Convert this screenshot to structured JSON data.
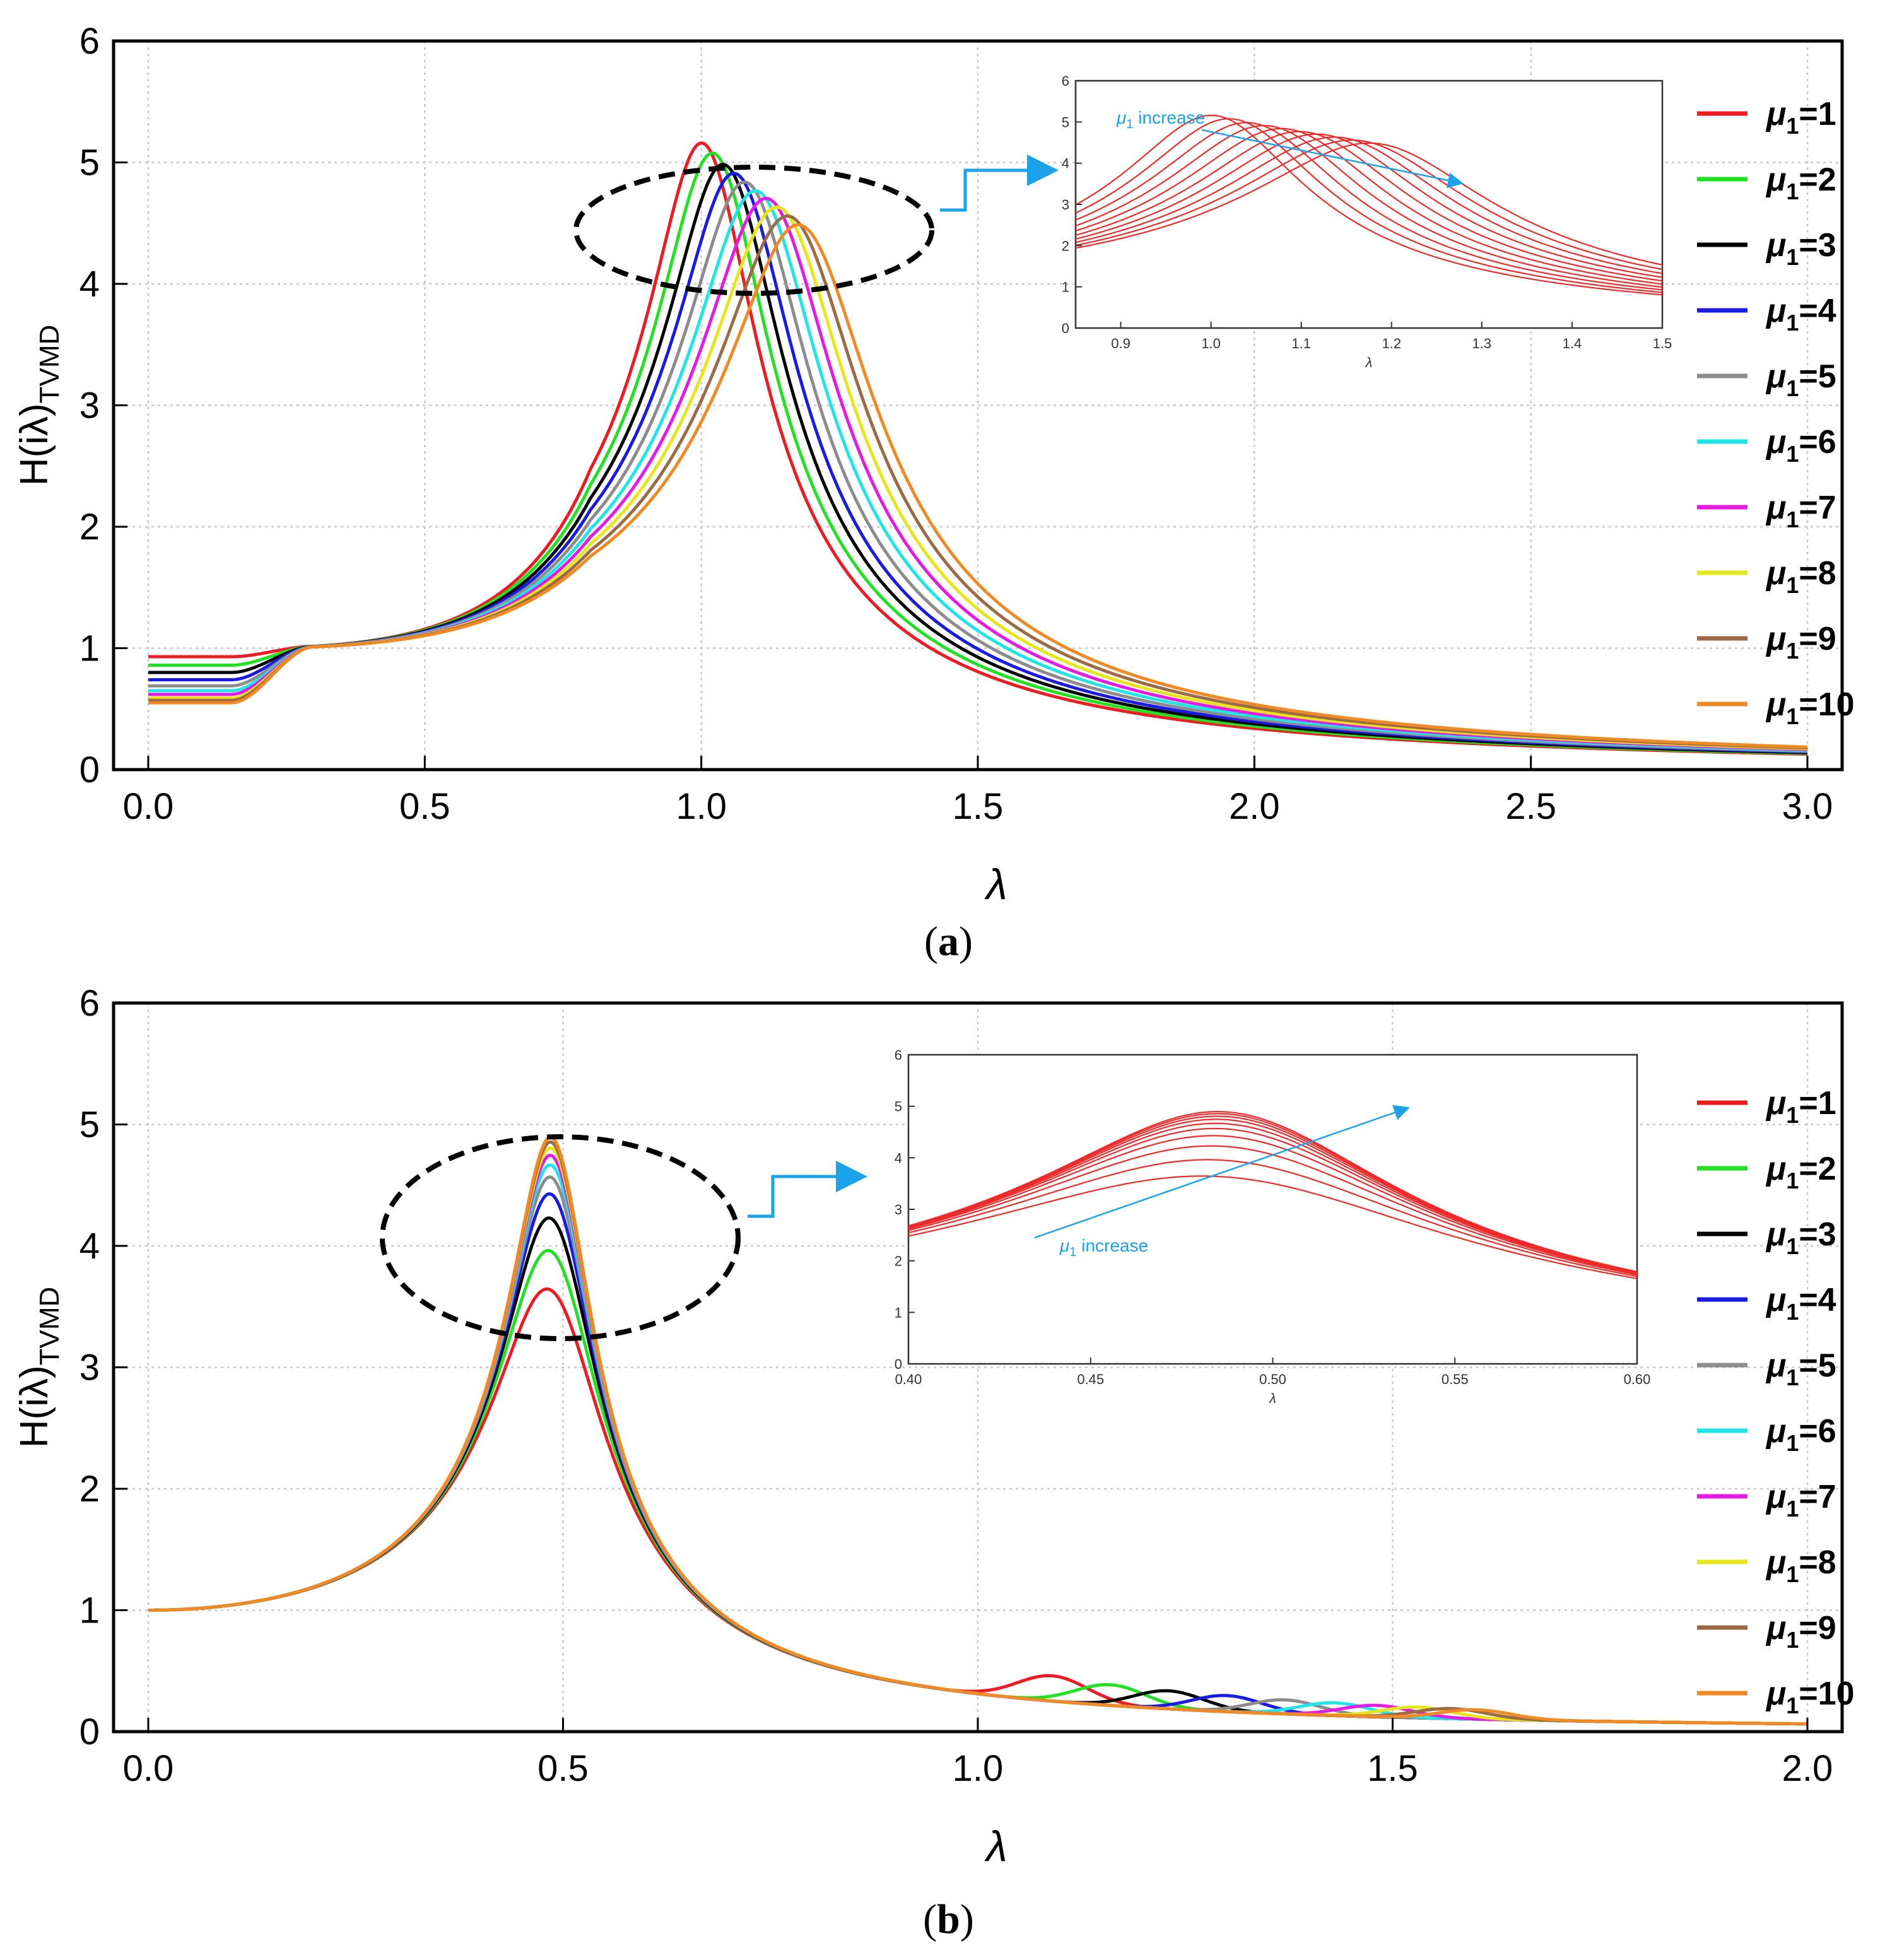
{
  "figure": {
    "legend_labels": [
      "μ1=1",
      "μ1=2",
      "μ1=3",
      "μ1=4",
      "μ1=5",
      "μ1=6",
      "μ1=7",
      "μ1=8",
      "μ1=9",
      "μ1=10"
    ],
    "colors": [
      "#ee1b22",
      "#22e022",
      "#000000",
      "#1a1ae6",
      "#8c8c8c",
      "#1fe6e6",
      "#e61ae6",
      "#e6e61a",
      "#9c6b46",
      "#f08a24"
    ],
    "inset_color": "#ee2a2a",
    "arrow_color": "#1aa3e8"
  },
  "chart_data": [
    {
      "panel_label": "a",
      "type": "line",
      "title": "",
      "xlabel": "λ",
      "ylabel": "H(iλ)",
      "ylabel_sub": "TVMD",
      "xlim": [
        0,
        3
      ],
      "ylim": [
        0,
        6
      ],
      "xticks": [
        "0.0",
        "0.5",
        "1.0",
        "1.5",
        "2.0",
        "2.5",
        "3.0"
      ],
      "yticks": [
        "0",
        "1",
        "2",
        "3",
        "4",
        "5",
        "6"
      ],
      "grid": true,
      "legend_position": "right",
      "series": [
        {
          "name": "μ1=1",
          "peak_x": 1.01,
          "peak_y": 4.93,
          "low_start": 0.93
        },
        {
          "name": "μ1=2",
          "peak_x": 1.03,
          "peak_y": 4.85,
          "low_start": 0.86
        },
        {
          "name": "μ1=3",
          "peak_x": 1.05,
          "peak_y": 4.76,
          "low_start": 0.8
        },
        {
          "name": "μ1=4",
          "peak_x": 1.07,
          "peak_y": 4.69,
          "low_start": 0.74
        },
        {
          "name": "μ1=5",
          "peak_x": 1.09,
          "peak_y": 4.62,
          "low_start": 0.69
        },
        {
          "name": "μ1=6",
          "peak_x": 1.11,
          "peak_y": 4.55,
          "low_start": 0.65
        },
        {
          "name": "μ1=7",
          "peak_x": 1.13,
          "peak_y": 4.49,
          "low_start": 0.62
        },
        {
          "name": "μ1=8",
          "peak_x": 1.15,
          "peak_y": 4.42,
          "low_start": 0.59
        },
        {
          "name": "μ1=9",
          "peak_x": 1.17,
          "peak_y": 4.35,
          "low_start": 0.57
        },
        {
          "name": "μ1=10",
          "peak_x": 1.19,
          "peak_y": 4.28,
          "low_start": 0.55
        }
      ],
      "inset": {
        "xlim": [
          0.85,
          1.5
        ],
        "ylim": [
          0,
          6
        ],
        "xticks": [
          "0.9",
          "1.0",
          "1.1",
          "1.2",
          "1.3",
          "1.4",
          "1.5"
        ],
        "yticks": [
          "0",
          "1",
          "2",
          "3",
          "4",
          "5",
          "6"
        ],
        "xlabel": "λ",
        "annotation": "μ1 increase",
        "annotation_sym": "μ",
        "annotation_sub": "1",
        "annotation_rest": " increase"
      }
    },
    {
      "panel_label": "b",
      "type": "line",
      "title": "",
      "xlabel": "λ",
      "ylabel": "H(iλ)",
      "ylabel_sub": "TVMD",
      "xlim": [
        0,
        2
      ],
      "ylim": [
        0,
        6
      ],
      "xticks": [
        "0.0",
        "0.5",
        "1.0",
        "1.5",
        "2.0"
      ],
      "yticks": [
        "0",
        "1",
        "2",
        "3",
        "4",
        "5",
        "6"
      ],
      "grid": true,
      "legend_position": "right",
      "series": [
        {
          "name": "μ1=1",
          "peak_x": 0.49,
          "peak_y": 3.61,
          "bump_x": 1.09,
          "bump_y": 0.38
        },
        {
          "name": "μ1=2",
          "peak_x": 0.49,
          "peak_y": 3.93,
          "bump_x": 1.16,
          "bump_y": 0.31
        },
        {
          "name": "μ1=3",
          "peak_x": 0.49,
          "peak_y": 4.2,
          "bump_x": 1.23,
          "bump_y": 0.27
        },
        {
          "name": "μ1=4",
          "peak_x": 0.49,
          "peak_y": 4.4,
          "bump_x": 1.3,
          "bump_y": 0.24
        },
        {
          "name": "μ1=5",
          "peak_x": 0.49,
          "peak_y": 4.54,
          "bump_x": 1.37,
          "bump_y": 0.21
        },
        {
          "name": "μ1=6",
          "peak_x": 0.49,
          "peak_y": 4.64,
          "bump_x": 1.43,
          "bump_y": 0.19
        },
        {
          "name": "μ1=7",
          "peak_x": 0.49,
          "peak_y": 4.72,
          "bump_x": 1.48,
          "bump_y": 0.17
        },
        {
          "name": "μ1=8",
          "peak_x": 0.49,
          "peak_y": 4.78,
          "bump_x": 1.53,
          "bump_y": 0.16
        },
        {
          "name": "μ1=9",
          "peak_x": 0.49,
          "peak_y": 4.83,
          "bump_x": 1.57,
          "bump_y": 0.15
        },
        {
          "name": "μ1=10",
          "peak_x": 0.49,
          "peak_y": 4.87,
          "bump_x": 1.6,
          "bump_y": 0.14
        }
      ],
      "inset": {
        "xlim": [
          0.4,
          0.6
        ],
        "ylim": [
          0,
          6
        ],
        "xticks": [
          "0.40",
          "0.45",
          "0.50",
          "0.55",
          "0.60"
        ],
        "yticks": [
          "0",
          "1",
          "2",
          "3",
          "4",
          "5",
          "6"
        ],
        "xlabel": "λ",
        "annotation": "μ1 increase",
        "annotation_sym": "μ",
        "annotation_sub": "1",
        "annotation_rest": " increase"
      }
    }
  ],
  "captions": {
    "a": "a",
    "b": "b"
  }
}
